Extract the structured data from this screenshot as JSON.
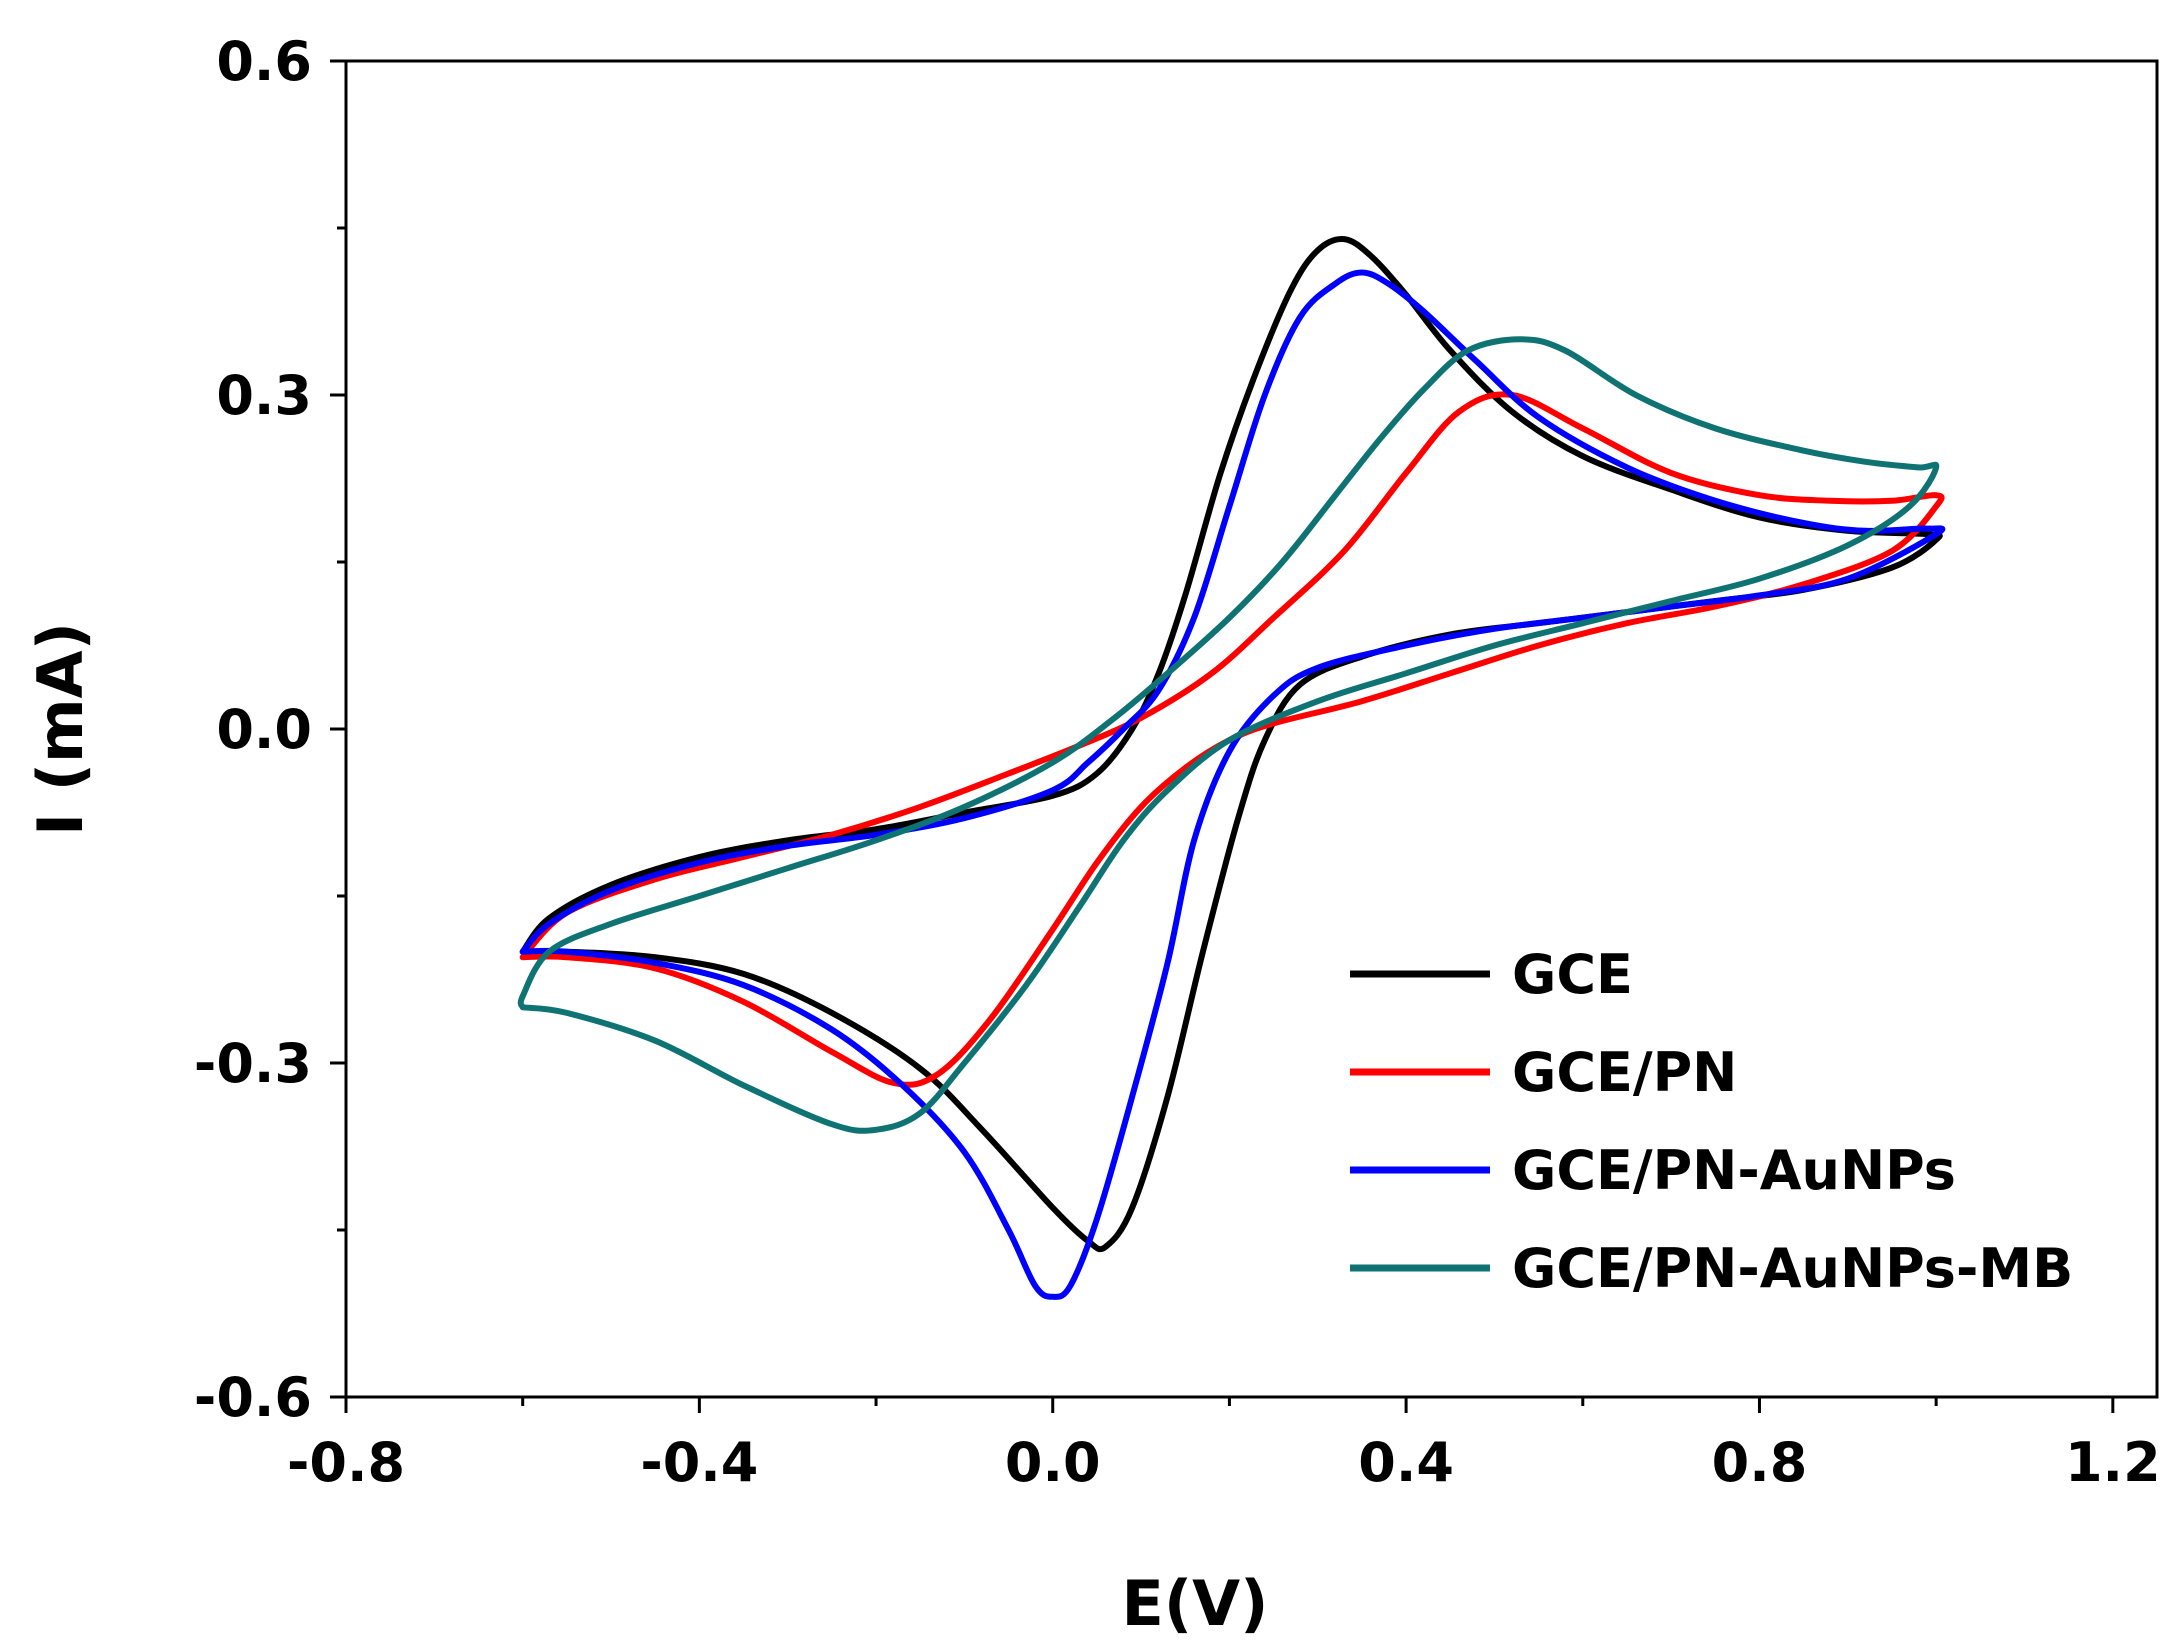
{
  "chart_data": {
    "type": "line",
    "title": "",
    "xlabel": "E(V)",
    "ylabel": "I (mA)",
    "xlim": [
      -0.8,
      1.25
    ],
    "ylim": [
      -0.6,
      0.6
    ],
    "xticks": [
      {
        "value": -0.8,
        "label": "-0.8"
      },
      {
        "value": -0.4,
        "label": "-0.4"
      },
      {
        "value": 0.0,
        "label": "0.0"
      },
      {
        "value": 0.4,
        "label": "0.4"
      },
      {
        "value": 0.8,
        "label": "0.8"
      },
      {
        "value": 1.2,
        "label": "1.2"
      }
    ],
    "yticks": [
      {
        "value": 0.6,
        "label": "0.6"
      },
      {
        "value": 0.3,
        "label": "0.3"
      },
      {
        "value": 0.0,
        "label": "0.0"
      },
      {
        "value": -0.3,
        "label": "-0.3"
      },
      {
        "value": -0.6,
        "label": "-0.6"
      }
    ],
    "minor_xticks": [
      -0.6,
      -0.2,
      0.2,
      0.6,
      1.0
    ],
    "minor_yticks": [
      0.45,
      0.15,
      -0.15,
      -0.45
    ],
    "grid": false,
    "legend_position": "bottom-right",
    "series": [
      {
        "name": "GCE",
        "color": "#000000",
        "points": [
          [
            -0.6,
            -0.2
          ],
          [
            -0.55,
            -0.2
          ],
          [
            -0.45,
            -0.205
          ],
          [
            -0.35,
            -0.22
          ],
          [
            -0.25,
            -0.255
          ],
          [
            -0.15,
            -0.305
          ],
          [
            -0.08,
            -0.36
          ],
          [
            0.0,
            -0.43
          ],
          [
            0.04,
            -0.46
          ],
          [
            0.06,
            -0.465
          ],
          [
            0.09,
            -0.43
          ],
          [
            0.13,
            -0.33
          ],
          [
            0.17,
            -0.2
          ],
          [
            0.21,
            -0.08
          ],
          [
            0.24,
            -0.01
          ],
          [
            0.28,
            0.04
          ],
          [
            0.35,
            0.065
          ],
          [
            0.45,
            0.085
          ],
          [
            0.55,
            0.095
          ],
          [
            0.65,
            0.105
          ],
          [
            0.75,
            0.115
          ],
          [
            0.85,
            0.125
          ],
          [
            0.95,
            0.145
          ],
          [
            1.0,
            0.17
          ],
          [
            0.99,
            0.175
          ],
          [
            0.9,
            0.178
          ],
          [
            0.8,
            0.19
          ],
          [
            0.7,
            0.215
          ],
          [
            0.6,
            0.245
          ],
          [
            0.52,
            0.285
          ],
          [
            0.45,
            0.34
          ],
          [
            0.4,
            0.39
          ],
          [
            0.36,
            0.425
          ],
          [
            0.33,
            0.44
          ],
          [
            0.3,
            0.43
          ],
          [
            0.27,
            0.395
          ],
          [
            0.23,
            0.32
          ],
          [
            0.19,
            0.23
          ],
          [
            0.15,
            0.12
          ],
          [
            0.12,
            0.05
          ],
          [
            0.09,
            0.0
          ],
          [
            0.05,
            -0.04
          ],
          [
            0.0,
            -0.06
          ],
          [
            -0.1,
            -0.075
          ],
          [
            -0.2,
            -0.09
          ],
          [
            -0.3,
            -0.1
          ],
          [
            -0.4,
            -0.115
          ],
          [
            -0.5,
            -0.14
          ],
          [
            -0.57,
            -0.17
          ],
          [
            -0.6,
            -0.2
          ]
        ]
      },
      {
        "name": "GCE/PN",
        "color": "#ff0000",
        "points": [
          [
            -0.6,
            -0.205
          ],
          [
            -0.55,
            -0.205
          ],
          [
            -0.45,
            -0.215
          ],
          [
            -0.35,
            -0.245
          ],
          [
            -0.25,
            -0.29
          ],
          [
            -0.18,
            -0.318
          ],
          [
            -0.13,
            -0.31
          ],
          [
            -0.07,
            -0.26
          ],
          [
            0.0,
            -0.18
          ],
          [
            0.05,
            -0.12
          ],
          [
            0.1,
            -0.07
          ],
          [
            0.15,
            -0.035
          ],
          [
            0.2,
            -0.01
          ],
          [
            0.25,
            0.005
          ],
          [
            0.35,
            0.025
          ],
          [
            0.45,
            0.05
          ],
          [
            0.55,
            0.075
          ],
          [
            0.65,
            0.095
          ],
          [
            0.75,
            0.11
          ],
          [
            0.85,
            0.13
          ],
          [
            0.95,
            0.16
          ],
          [
            1.0,
            0.2
          ],
          [
            1.0,
            0.21
          ],
          [
            0.95,
            0.205
          ],
          [
            0.88,
            0.205
          ],
          [
            0.8,
            0.21
          ],
          [
            0.7,
            0.23
          ],
          [
            0.6,
            0.27
          ],
          [
            0.52,
            0.3
          ],
          [
            0.46,
            0.285
          ],
          [
            0.4,
            0.23
          ],
          [
            0.33,
            0.16
          ],
          [
            0.25,
            0.1
          ],
          [
            0.18,
            0.05
          ],
          [
            0.1,
            0.01
          ],
          [
            0.03,
            -0.015
          ],
          [
            -0.05,
            -0.04
          ],
          [
            -0.15,
            -0.07
          ],
          [
            -0.25,
            -0.095
          ],
          [
            -0.35,
            -0.115
          ],
          [
            -0.45,
            -0.135
          ],
          [
            -0.55,
            -0.165
          ],
          [
            -0.6,
            -0.205
          ]
        ]
      },
      {
        "name": "GCE/PN-AuNPs",
        "color": "#0000ff",
        "points": [
          [
            -0.6,
            -0.2
          ],
          [
            -0.55,
            -0.2
          ],
          [
            -0.45,
            -0.21
          ],
          [
            -0.35,
            -0.23
          ],
          [
            -0.25,
            -0.27
          ],
          [
            -0.17,
            -0.32
          ],
          [
            -0.1,
            -0.38
          ],
          [
            -0.05,
            -0.45
          ],
          [
            -0.02,
            -0.5
          ],
          [
            0.0,
            -0.51
          ],
          [
            0.02,
            -0.5
          ],
          [
            0.05,
            -0.44
          ],
          [
            0.09,
            -0.33
          ],
          [
            0.13,
            -0.21
          ],
          [
            0.16,
            -0.1
          ],
          [
            0.2,
            -0.02
          ],
          [
            0.25,
            0.03
          ],
          [
            0.3,
            0.055
          ],
          [
            0.4,
            0.075
          ],
          [
            0.5,
            0.09
          ],
          [
            0.6,
            0.1
          ],
          [
            0.7,
            0.11
          ],
          [
            0.8,
            0.12
          ],
          [
            0.9,
            0.135
          ],
          [
            1.0,
            0.175
          ],
          [
            0.99,
            0.18
          ],
          [
            0.92,
            0.178
          ],
          [
            0.85,
            0.185
          ],
          [
            0.75,
            0.205
          ],
          [
            0.65,
            0.235
          ],
          [
            0.55,
            0.28
          ],
          [
            0.48,
            0.33
          ],
          [
            0.42,
            0.375
          ],
          [
            0.38,
            0.4
          ],
          [
            0.35,
            0.41
          ],
          [
            0.32,
            0.4
          ],
          [
            0.28,
            0.37
          ],
          [
            0.24,
            0.3
          ],
          [
            0.2,
            0.2
          ],
          [
            0.16,
            0.1
          ],
          [
            0.12,
            0.035
          ],
          [
            0.08,
            0.0
          ],
          [
            0.04,
            -0.03
          ],
          [
            0.0,
            -0.055
          ],
          [
            -0.1,
            -0.08
          ],
          [
            -0.2,
            -0.095
          ],
          [
            -0.3,
            -0.105
          ],
          [
            -0.4,
            -0.12
          ],
          [
            -0.5,
            -0.145
          ],
          [
            -0.57,
            -0.175
          ],
          [
            -0.6,
            -0.2
          ]
        ]
      },
      {
        "name": "GCE/PN-AuNPs-MB",
        "color": "#0f7373",
        "points": [
          [
            -0.6,
            -0.25
          ],
          [
            -0.55,
            -0.255
          ],
          [
            -0.45,
            -0.28
          ],
          [
            -0.35,
            -0.32
          ],
          [
            -0.25,
            -0.355
          ],
          [
            -0.2,
            -0.36
          ],
          [
            -0.15,
            -0.345
          ],
          [
            -0.1,
            -0.3
          ],
          [
            -0.03,
            -0.23
          ],
          [
            0.03,
            -0.16
          ],
          [
            0.08,
            -0.1
          ],
          [
            0.13,
            -0.055
          ],
          [
            0.2,
            -0.01
          ],
          [
            0.3,
            0.025
          ],
          [
            0.4,
            0.05
          ],
          [
            0.5,
            0.075
          ],
          [
            0.6,
            0.095
          ],
          [
            0.7,
            0.115
          ],
          [
            0.8,
            0.135
          ],
          [
            0.9,
            0.165
          ],
          [
            0.97,
            0.2
          ],
          [
            1.0,
            0.235
          ],
          [
            0.98,
            0.235
          ],
          [
            0.92,
            0.24
          ],
          [
            0.85,
            0.25
          ],
          [
            0.75,
            0.27
          ],
          [
            0.66,
            0.3
          ],
          [
            0.58,
            0.34
          ],
          [
            0.53,
            0.35
          ],
          [
            0.47,
            0.34
          ],
          [
            0.42,
            0.305
          ],
          [
            0.37,
            0.26
          ],
          [
            0.32,
            0.21
          ],
          [
            0.26,
            0.15
          ],
          [
            0.2,
            0.1
          ],
          [
            0.13,
            0.05
          ],
          [
            0.07,
            0.01
          ],
          [
            0.0,
            -0.03
          ],
          [
            -0.1,
            -0.07
          ],
          [
            -0.2,
            -0.1
          ],
          [
            -0.3,
            -0.125
          ],
          [
            -0.4,
            -0.15
          ],
          [
            -0.5,
            -0.175
          ],
          [
            -0.57,
            -0.2
          ],
          [
            -0.6,
            -0.24
          ],
          [
            -0.6,
            -0.25
          ]
        ]
      }
    ]
  }
}
